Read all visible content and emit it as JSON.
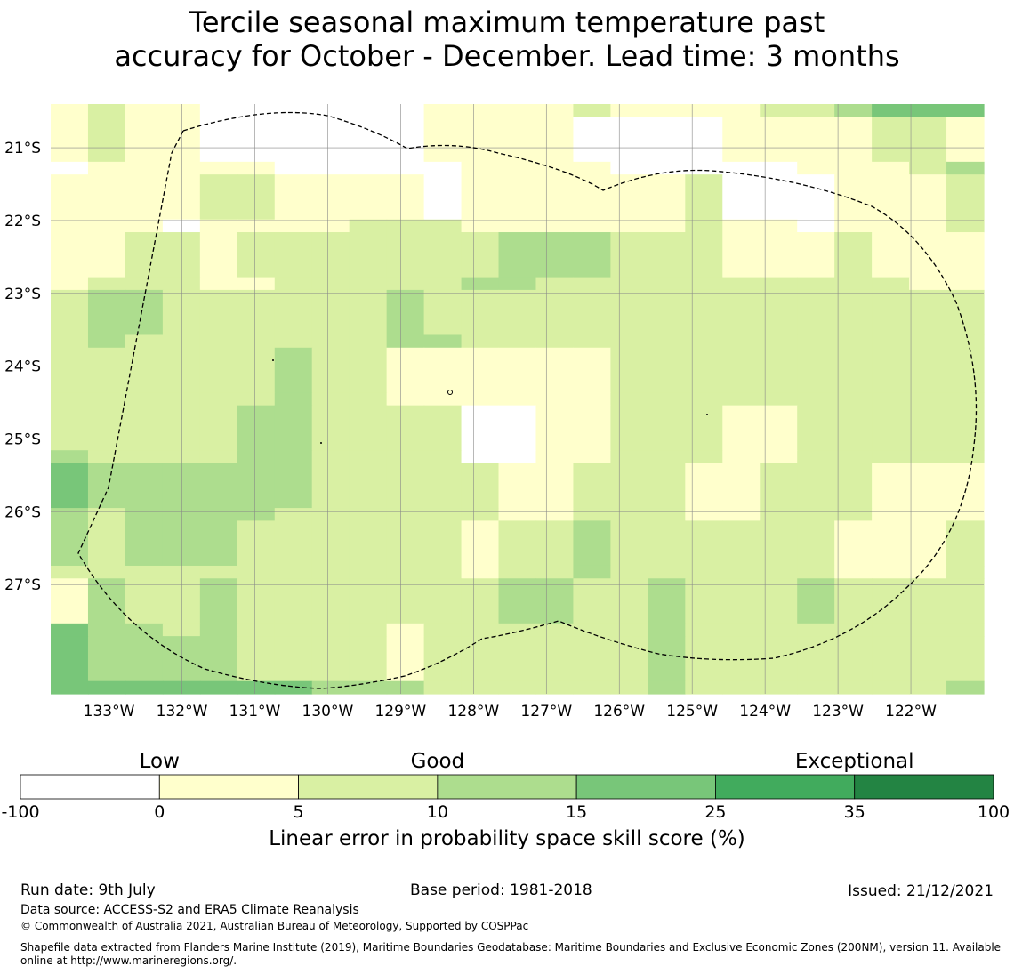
{
  "title_line1": "Tercile seasonal maximum temperature past",
  "title_line2": "accuracy for October - December. Lead time: 3 months",
  "map": {
    "lon_range": [
      -133.8,
      -121.0
    ],
    "lat_range": [
      -20.4,
      -28.5
    ],
    "lon_ticks": [
      {
        "value": -133,
        "label": "133°W"
      },
      {
        "value": -132,
        "label": "132°W"
      },
      {
        "value": -131,
        "label": "131°W"
      },
      {
        "value": -130,
        "label": "130°W"
      },
      {
        "value": -129,
        "label": "129°W"
      },
      {
        "value": -128,
        "label": "128°W"
      },
      {
        "value": -127,
        "label": "127°W"
      },
      {
        "value": -126,
        "label": "126°W"
      },
      {
        "value": -125,
        "label": "125°W"
      },
      {
        "value": -124,
        "label": "124°W"
      },
      {
        "value": -123,
        "label": "123°W"
      },
      {
        "value": -122,
        "label": "122°W"
      }
    ],
    "lat_ticks": [
      {
        "value": -21,
        "label": "21°S"
      },
      {
        "value": -22,
        "label": "22°S"
      },
      {
        "value": -23,
        "label": "23°S"
      },
      {
        "value": -24,
        "label": "24°S"
      },
      {
        "value": -25,
        "label": "25°S"
      },
      {
        "value": -26,
        "label": "26°S"
      },
      {
        "value": -27,
        "label": "27°S"
      }
    ],
    "grid_note_rows": "each row is one grid band from north to south; each digit is the colour class of one column from west to east",
    "class_colors": [
      "#ffffff",
      "#ffffcc",
      "#d9f0a3",
      "#addd8e",
      "#78c679",
      "#41ab5d",
      "#238443"
    ],
    "grid": [
      "1211000000111121111223444",
      "1211000000111100001111221",
      "0111110000011110000011123",
      "1111221111011111120001112",
      "1110111122211111121101112",
      "1122122222223332221112111",
      "1222112222233222222222211",
      "2332222223222222222222222",
      "2322222223322222222222222",
      "2222223221111112222222222",
      "2222223221111112222222222",
      "2222233222200112221122222",
      "3222233222200112221122222",
      "4333333222221122211222111",
      "3233332222221122211222111",
      "3233322222212232222221112",
      "2222222222212232222221112",
      "1322322222223322322232222",
      "4332322221222222322222222",
      "4333322221222222322222222",
      "4444444333222222322222223"
    ]
  },
  "legend": {
    "categories": [
      {
        "label": "Low",
        "value": 0
      },
      {
        "label": "Good",
        "value": 10
      },
      {
        "label": "Exceptional",
        "value": 35
      }
    ],
    "bounds": [
      "-100",
      "0",
      "5",
      "10",
      "15",
      "25",
      "35",
      "100"
    ],
    "colors": [
      "#ffffff",
      "#ffffcc",
      "#d9f0a3",
      "#addd8e",
      "#78c679",
      "#41ab5d",
      "#238443"
    ],
    "axis_label": "Linear error in probability space skill score (%)"
  },
  "footer": {
    "run_date": "Run date: 9th July",
    "base_period": "Base period: 1981-2018",
    "issued": "Issued: 21/12/2021",
    "data_source": "Data source: ACCESS-S2 and ERA5 Climate Reanalysis",
    "copyright": "© Commonwealth of Australia 2021, Australian Bureau of Meteorology, Supported by COSPPac",
    "shapefile_line1": "Shapefile data extracted from Flanders Marine Institute (2019), Maritime Boundaries Geodatabase: Maritime Boundaries and Exclusive Economic Zones (200NM), version 11. Available",
    "shapefile_line2": "online at http://www.marineregions.org/."
  }
}
